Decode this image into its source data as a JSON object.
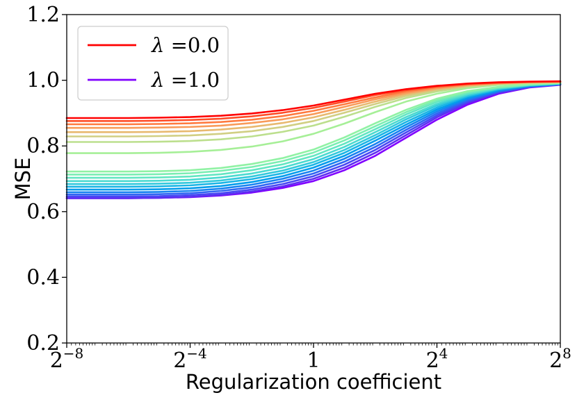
{
  "chart_data": {
    "type": "line",
    "title": "",
    "xlabel": "Regularization coefficient",
    "ylabel": "MSE",
    "xscale": "log2",
    "xlim_log2": [
      -8,
      8
    ],
    "ylim": [
      0.2,
      1.2
    ],
    "x_ticks": [
      {
        "log2": -8,
        "base": "2",
        "exp": "−8"
      },
      {
        "log2": -4,
        "base": "2",
        "exp": "−4"
      },
      {
        "log2": 0,
        "base": "1",
        "exp": ""
      },
      {
        "log2": 4,
        "base": "2",
        "exp": "4"
      },
      {
        "log2": 8,
        "base": "2",
        "exp": "8"
      }
    ],
    "y_ticks": [
      {
        "value": 0.2,
        "label": "0.2"
      },
      {
        "value": 0.4,
        "label": "0.4"
      },
      {
        "value": 0.6,
        "label": "0.6"
      },
      {
        "value": 0.8,
        "label": "0.8"
      },
      {
        "value": 1.0,
        "label": "1.0"
      },
      {
        "value": 1.2,
        "label": "1.2"
      }
    ],
    "x_log2": [
      -8,
      -7,
      -6,
      -5,
      -4,
      -3,
      -2,
      -1,
      0,
      1,
      2,
      3,
      4,
      5,
      6,
      7,
      8
    ],
    "legend": {
      "placement": "top-left",
      "entries": [
        {
          "lambda_symbol": "λ",
          "text": " =0.0",
          "color": "#ff0000"
        },
        {
          "lambda_symbol": "λ",
          "text": " =1.0",
          "color": "#8000ff"
        }
      ]
    },
    "series": [
      {
        "name": "lambda=0.0",
        "color": "#ff0000",
        "values": [
          0.885,
          0.885,
          0.885,
          0.886,
          0.888,
          0.892,
          0.899,
          0.909,
          0.923,
          0.941,
          0.959,
          0.973,
          0.983,
          0.99,
          0.994,
          0.996,
          0.997
        ]
      },
      {
        "name": "lambda=0.05",
        "color": "#ff4d27",
        "values": [
          0.876,
          0.876,
          0.876,
          0.877,
          0.879,
          0.883,
          0.89,
          0.901,
          0.916,
          0.935,
          0.955,
          0.97,
          0.981,
          0.989,
          0.993,
          0.995,
          0.996
        ]
      },
      {
        "name": "lambda=0.1",
        "color": "#ff7a3f",
        "values": [
          0.866,
          0.866,
          0.866,
          0.867,
          0.869,
          0.873,
          0.88,
          0.891,
          0.907,
          0.927,
          0.948,
          0.966,
          0.979,
          0.987,
          0.992,
          0.995,
          0.996
        ]
      },
      {
        "name": "lambda=0.15",
        "color": "#f99b5a",
        "values": [
          0.855,
          0.855,
          0.855,
          0.856,
          0.858,
          0.862,
          0.87,
          0.881,
          0.897,
          0.919,
          0.942,
          0.961,
          0.976,
          0.986,
          0.991,
          0.994,
          0.995
        ]
      },
      {
        "name": "lambda=0.2",
        "color": "#e8b970",
        "values": [
          0.842,
          0.842,
          0.842,
          0.843,
          0.845,
          0.85,
          0.858,
          0.87,
          0.887,
          0.91,
          0.935,
          0.957,
          0.973,
          0.984,
          0.99,
          0.994,
          0.995
        ]
      },
      {
        "name": "lambda=0.25",
        "color": "#d1cf83",
        "values": [
          0.829,
          0.829,
          0.829,
          0.83,
          0.832,
          0.837,
          0.845,
          0.858,
          0.876,
          0.901,
          0.928,
          0.952,
          0.97,
          0.982,
          0.989,
          0.993,
          0.994
        ]
      },
      {
        "name": "lambda=0.3",
        "color": "#bcdf8d",
        "values": [
          0.812,
          0.812,
          0.812,
          0.813,
          0.815,
          0.82,
          0.829,
          0.843,
          0.862,
          0.889,
          0.919,
          0.946,
          0.966,
          0.98,
          0.988,
          0.992,
          0.994
        ]
      },
      {
        "name": "lambda=0.35",
        "color": "#a6ef97",
        "values": [
          0.778,
          0.778,
          0.778,
          0.779,
          0.782,
          0.788,
          0.798,
          0.814,
          0.837,
          0.868,
          0.903,
          0.935,
          0.959,
          0.976,
          0.986,
          0.991,
          0.993
        ]
      },
      {
        "name": "lambda=0.4",
        "color": "#90f2a4",
        "values": [
          0.722,
          0.722,
          0.722,
          0.723,
          0.726,
          0.733,
          0.745,
          0.763,
          0.789,
          0.826,
          0.869,
          0.91,
          0.944,
          0.967,
          0.98,
          0.988,
          0.992
        ]
      },
      {
        "name": "lambda=0.45",
        "color": "#7aeeb3",
        "values": [
          0.713,
          0.713,
          0.713,
          0.714,
          0.717,
          0.724,
          0.736,
          0.754,
          0.78,
          0.817,
          0.86,
          0.903,
          0.939,
          0.964,
          0.979,
          0.987,
          0.991
        ]
      },
      {
        "name": "lambda=0.5",
        "color": "#63e6c2",
        "values": [
          0.703,
          0.703,
          0.703,
          0.704,
          0.707,
          0.714,
          0.726,
          0.744,
          0.77,
          0.807,
          0.851,
          0.896,
          0.934,
          0.96,
          0.977,
          0.986,
          0.991
        ]
      },
      {
        "name": "lambda=0.55",
        "color": "#4bdad0",
        "values": [
          0.693,
          0.693,
          0.693,
          0.694,
          0.697,
          0.704,
          0.716,
          0.734,
          0.76,
          0.797,
          0.842,
          0.888,
          0.928,
          0.957,
          0.975,
          0.985,
          0.99
        ]
      },
      {
        "name": "lambda=0.6",
        "color": "#33c9dc",
        "values": [
          0.684,
          0.684,
          0.684,
          0.685,
          0.688,
          0.695,
          0.707,
          0.725,
          0.751,
          0.788,
          0.833,
          0.881,
          0.923,
          0.954,
          0.974,
          0.985,
          0.99
        ]
      },
      {
        "name": "lambda=0.65",
        "color": "#1ab5e5",
        "values": [
          0.676,
          0.676,
          0.676,
          0.677,
          0.68,
          0.687,
          0.699,
          0.717,
          0.743,
          0.779,
          0.825,
          0.873,
          0.917,
          0.951,
          0.972,
          0.984,
          0.989
        ]
      },
      {
        "name": "lambda=0.7",
        "color": "#039dec",
        "values": [
          0.667,
          0.667,
          0.667,
          0.668,
          0.671,
          0.678,
          0.69,
          0.708,
          0.734,
          0.77,
          0.816,
          0.865,
          0.911,
          0.947,
          0.97,
          0.983,
          0.989
        ]
      },
      {
        "name": "lambda=0.75",
        "color": "#1783f1",
        "values": [
          0.659,
          0.659,
          0.659,
          0.66,
          0.663,
          0.67,
          0.682,
          0.7,
          0.725,
          0.761,
          0.806,
          0.857,
          0.905,
          0.943,
          0.968,
          0.982,
          0.988
        ]
      },
      {
        "name": "lambda=0.8",
        "color": "#2f66f3",
        "values": [
          0.652,
          0.652,
          0.652,
          0.653,
          0.656,
          0.663,
          0.674,
          0.692,
          0.716,
          0.752,
          0.797,
          0.849,
          0.899,
          0.939,
          0.966,
          0.981,
          0.988
        ]
      },
      {
        "name": "lambda=0.85",
        "color": "#4848f3",
        "values": [
          0.646,
          0.646,
          0.646,
          0.647,
          0.65,
          0.656,
          0.667,
          0.684,
          0.708,
          0.743,
          0.788,
          0.841,
          0.893,
          0.935,
          0.964,
          0.98,
          0.987
        ]
      },
      {
        "name": "lambda=0.9",
        "color": "#5e2ef1",
        "values": [
          0.641,
          0.641,
          0.641,
          0.642,
          0.645,
          0.651,
          0.661,
          0.677,
          0.7,
          0.734,
          0.779,
          0.833,
          0.887,
          0.931,
          0.962,
          0.979,
          0.987
        ]
      },
      {
        "name": "lambda=1.0",
        "color": "#8000ff",
        "values": [
          0.641,
          0.641,
          0.641,
          0.642,
          0.644,
          0.649,
          0.658,
          0.672,
          0.693,
          0.726,
          0.77,
          0.825,
          0.88,
          0.926,
          0.959,
          0.978,
          0.986
        ]
      }
    ]
  }
}
